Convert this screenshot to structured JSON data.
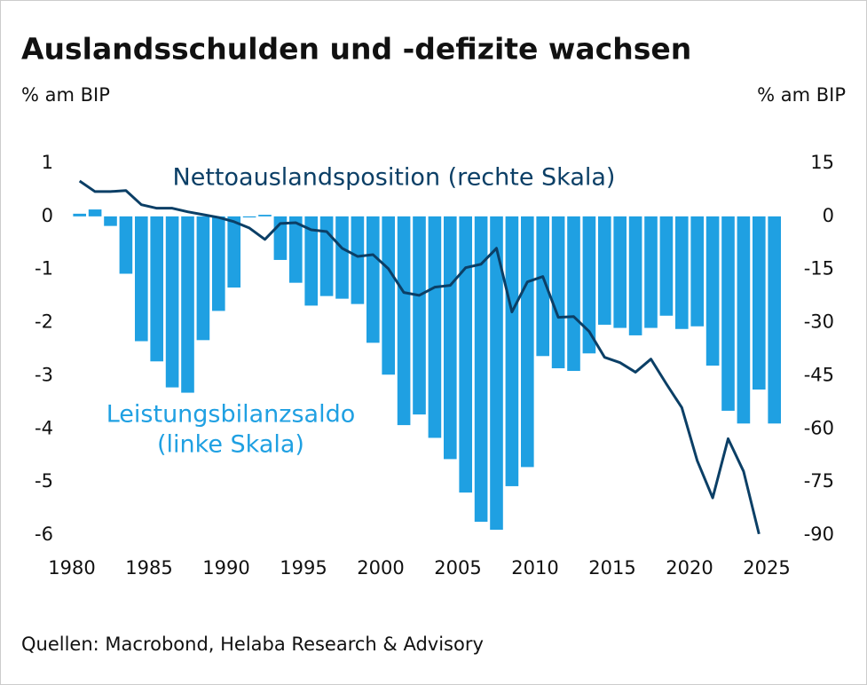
{
  "chart_data": {
    "type": "combo",
    "title": "Auslandsschulden und -defizite wachsen",
    "y_label": "% am BIP",
    "y2_label": "% am BIP",
    "source": "Quellen: Macrobond, Helaba Research & Advisory",
    "annotations": [
      "Nettoauslandsposition (rechte Skala)",
      "Leistungsbilanzsaldo",
      "(linke Skala)"
    ],
    "x": [
      1980,
      1981,
      1982,
      1983,
      1984,
      1985,
      1986,
      1987,
      1988,
      1989,
      1990,
      1991,
      1992,
      1993,
      1994,
      1995,
      1996,
      1997,
      1998,
      1999,
      2000,
      2001,
      2002,
      2003,
      2004,
      2005,
      2006,
      2007,
      2008,
      2009,
      2010,
      2011,
      2012,
      2013,
      2014,
      2015,
      2016,
      2017,
      2018,
      2019,
      2020,
      2021,
      2022,
      2023,
      2024,
      2025
    ],
    "xlim": [
      1980,
      2025
    ],
    "xticks": [
      1980,
      1985,
      1990,
      1995,
      2000,
      2005,
      2010,
      2015,
      2020,
      2025
    ],
    "ylim": [
      -6,
      1
    ],
    "yticks": [
      1,
      0,
      -1,
      -2,
      -3,
      -4,
      -5,
      -6
    ],
    "y2lim": [
      -90,
      15
    ],
    "y2ticks": [
      15,
      0,
      -15,
      -30,
      -45,
      -60,
      -75,
      -90
    ],
    "series": [
      {
        "name": "Leistungsbilanzsaldo",
        "type": "bar",
        "axis": "y",
        "color": "#1fa0e2",
        "values": [
          0.05,
          0.13,
          -0.18,
          -1.08,
          -2.35,
          -2.73,
          -3.22,
          -3.32,
          -2.33,
          -1.78,
          -1.34,
          -0.02,
          0.03,
          -0.82,
          -1.25,
          -1.68,
          -1.5,
          -1.55,
          -1.65,
          -2.38,
          -2.98,
          -3.93,
          -3.73,
          -4.17,
          -4.57,
          -5.2,
          -5.75,
          -5.9,
          -5.08,
          -4.72,
          -2.63,
          -2.86,
          -2.91,
          -2.58,
          -2.04,
          -2.1,
          -2.24,
          -2.1,
          -1.87,
          -2.12,
          -2.07,
          -2.81,
          -3.66,
          -3.9,
          -3.26,
          -3.9
        ]
      },
      {
        "name": "Nettoauslandsposition",
        "type": "line",
        "axis": "y2",
        "color": "#0b3f66",
        "values": [
          10,
          7,
          7,
          7.3,
          3.3,
          2.3,
          2.3,
          1.3,
          0.5,
          -0.3,
          -1.5,
          -3.3,
          -6.5,
          -2,
          -1.8,
          -3.8,
          -4.3,
          -9,
          -11.3,
          -10.8,
          -14.8,
          -21.5,
          -22.3,
          -20,
          -19.5,
          -14.5,
          -13.5,
          -9,
          -27,
          -18.5,
          -17,
          -28.5,
          -28.3,
          -32.5,
          -39.8,
          -41.3,
          -44,
          -40.3,
          -47.3,
          -54,
          -69,
          -79.5,
          -62.8,
          -72,
          -89.7,
          null
        ]
      }
    ]
  }
}
